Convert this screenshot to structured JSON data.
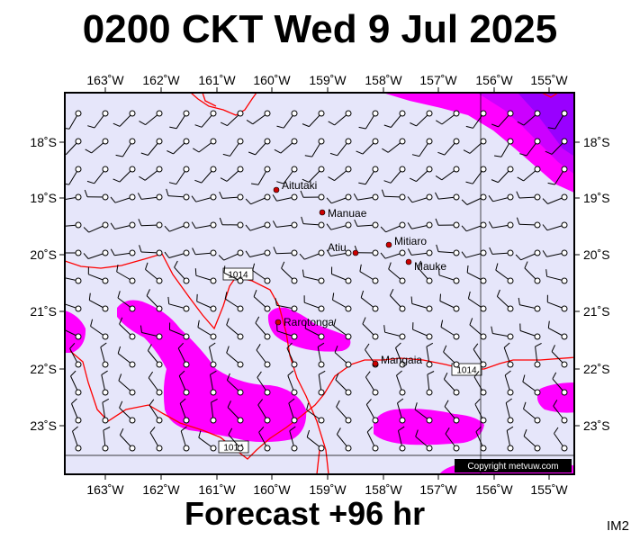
{
  "title": "0200 CKT Wed 9 Jul 2025",
  "footer": "Forecast +96 hr",
  "code": "IM2",
  "copyright": "Copyright metvuw.com",
  "axes": {
    "lon_labels": [
      "163˚W",
      "162˚W",
      "161˚W",
      "160˚W",
      "159˚W",
      "158˚W",
      "157˚W",
      "156˚W",
      "155˚W"
    ],
    "lat_labels": [
      "18˚S",
      "19˚S",
      "20˚S",
      "21˚S",
      "22˚S",
      "23˚S"
    ]
  },
  "isobars": [
    {
      "label": "1014"
    },
    {
      "label": "1014"
    },
    {
      "label": "1014"
    }
  ],
  "places": [
    {
      "name": "Aitutaki"
    },
    {
      "name": "Manuae"
    },
    {
      "name": "Mitiaro"
    },
    {
      "name": "Atiu"
    },
    {
      "name": "Mauke"
    },
    {
      "name": "Rarotonga"
    },
    {
      "name": "Mangaia"
    }
  ],
  "colors": {
    "ocean": "#e6e6fa",
    "rain_light": "#ff00ff",
    "rain_medium": "#cc00ff",
    "rain_heavy": "#9900ff",
    "isobar": "#ff0000",
    "island_dot": "#cc0000"
  }
}
